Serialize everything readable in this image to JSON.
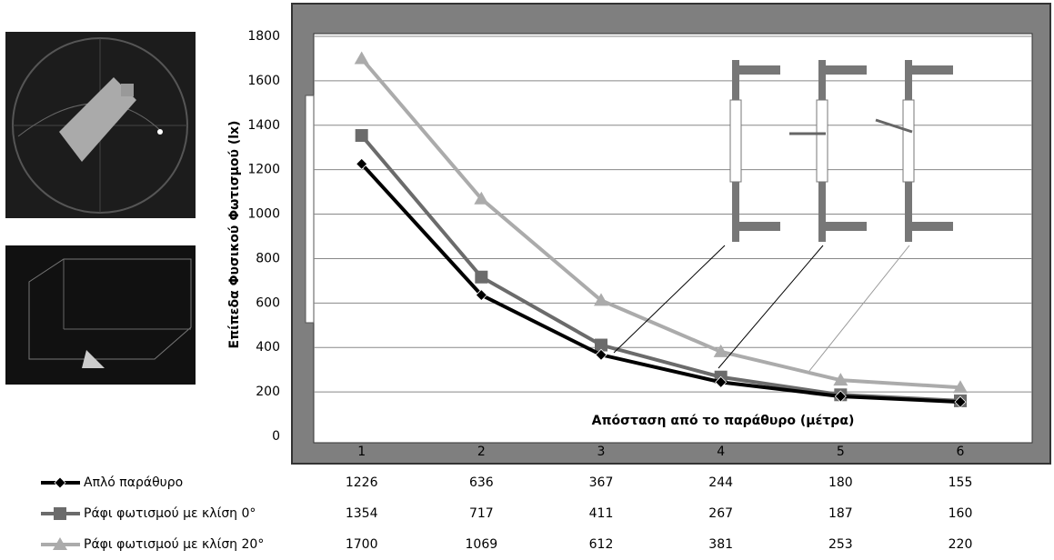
{
  "chart_data": {
    "type": "line",
    "ylabel": "Επίπεδα Φυσικού Φωτισμού (lx)",
    "xlabel": "Απόσταση από το παράθυρο (μέτρα)",
    "categories": [
      "1",
      "2",
      "3",
      "4",
      "5",
      "6"
    ],
    "series": [
      {
        "name": "Απλό παράθυρο",
        "color": "#000000",
        "marker": "diamond",
        "values": [
          1226,
          636,
          367,
          244,
          180,
          155
        ]
      },
      {
        "name": "Ράφι φωτισμού με κλίση 0°",
        "color": "#6b6b6b",
        "marker": "square",
        "values": [
          1354,
          717,
          411,
          267,
          187,
          160
        ]
      },
      {
        "name": "Ράφι φωτισμού με κλίση 20°",
        "color": "#ababab",
        "marker": "triangle",
        "values": [
          1700,
          1069,
          612,
          381,
          253,
          220
        ]
      }
    ],
    "ylim": [
      0,
      1800
    ],
    "yticks": [
      0,
      200,
      400,
      600,
      800,
      1000,
      1200,
      1400,
      1600,
      1800
    ],
    "grid": true
  }
}
